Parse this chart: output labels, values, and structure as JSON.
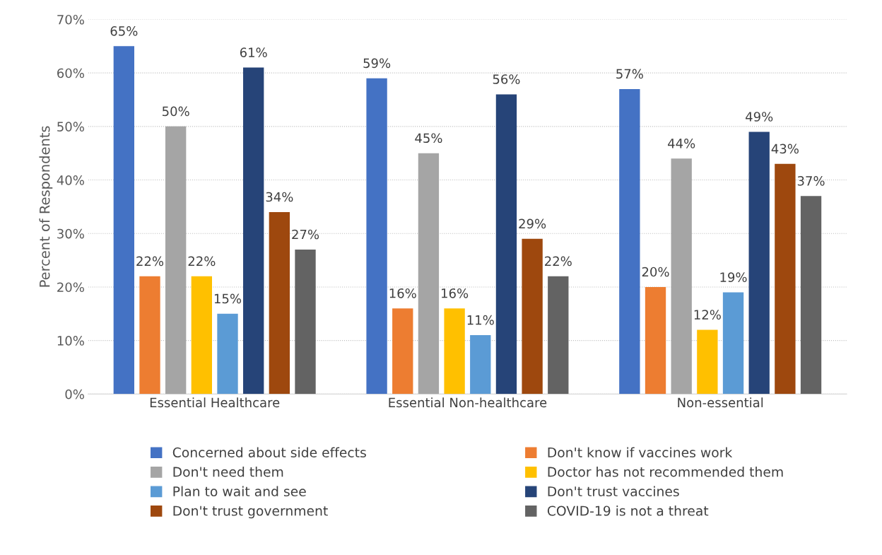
{
  "chart_data": {
    "type": "bar",
    "ylabel": "Percent of Respondents",
    "categories": [
      "Essential Healthcare",
      "Essential Non-healthcare",
      "Non-essential"
    ],
    "series": [
      {
        "name": "Concerned about side effects",
        "color": "#4472c4",
        "values": [
          65,
          59,
          57
        ],
        "value_labels": [
          "65%",
          "59%",
          "57%"
        ]
      },
      {
        "name": "Don't know if vaccines work",
        "color": "#ed7d31",
        "values": [
          22,
          16,
          20
        ],
        "value_labels": [
          "22%",
          "16%",
          "20%"
        ]
      },
      {
        "name": "Don't need them",
        "color": "#a5a5a5",
        "values": [
          50,
          45,
          44
        ],
        "value_labels": [
          "50%",
          "45%",
          "44%"
        ]
      },
      {
        "name": "Doctor has not recommended them",
        "color": "#ffc000",
        "values": [
          22,
          16,
          12
        ],
        "value_labels": [
          "22%",
          "16%",
          "12%"
        ]
      },
      {
        "name": "Plan to wait and see",
        "color": "#5b9bd5",
        "values": [
          15,
          11,
          19
        ],
        "value_labels": [
          "15%",
          "11%",
          "19%"
        ]
      },
      {
        "name": "Don't trust vaccines",
        "color": "#264478",
        "values": [
          61,
          56,
          49
        ],
        "value_labels": [
          "61%",
          "56%",
          "49%"
        ]
      },
      {
        "name": "Don't trust government",
        "color": "#9e480e",
        "values": [
          34,
          29,
          43
        ],
        "value_labels": [
          "34%",
          "29%",
          "43%"
        ]
      },
      {
        "name": "COVID-19 is not a threat",
        "color": "#636363",
        "values": [
          27,
          22,
          37
        ],
        "value_labels": [
          "27%",
          "22%",
          "37%"
        ]
      }
    ],
    "ylim": [
      0,
      70
    ],
    "yticks": [
      {
        "value": 0,
        "label": "0%"
      },
      {
        "value": 10,
        "label": "10%"
      },
      {
        "value": 20,
        "label": "20%"
      },
      {
        "value": 30,
        "label": "30%"
      },
      {
        "value": 40,
        "label": "40%"
      },
      {
        "value": 50,
        "label": "50%"
      },
      {
        "value": 60,
        "label": "60%"
      },
      {
        "value": 70,
        "label": "70%"
      }
    ],
    "grid": "y",
    "legend": "bottom"
  }
}
